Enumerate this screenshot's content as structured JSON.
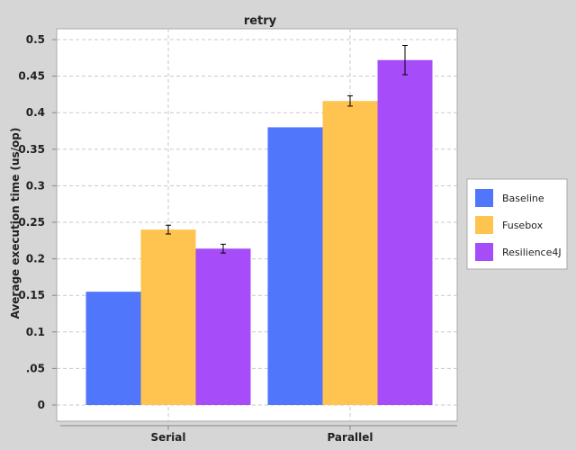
{
  "chart_data": {
    "type": "bar",
    "title": "retry",
    "xlabel": "",
    "ylabel": "Average execution time (us/op)",
    "ylim": [
      0,
      0.5
    ],
    "yticks": [
      0,
      0.05,
      0.1,
      0.15,
      0.2,
      0.25,
      0.3,
      0.35,
      0.4,
      0.45,
      0.5
    ],
    "ytick_labels": [
      "0",
      ".05",
      "0.1",
      "0.15",
      "0.2",
      "0.25",
      "0.3",
      "0.35",
      "0.4",
      "0.45",
      "0.5"
    ],
    "categories": [
      "Serial",
      "Parallel"
    ],
    "grid": true,
    "legend_position": "right",
    "series": [
      {
        "name": "Baseline",
        "color": "#4f76fb",
        "values": [
          0.155,
          0.38
        ],
        "error": [
          null,
          null
        ]
      },
      {
        "name": "Fusebox",
        "color": "#ffc34f",
        "values": [
          0.24,
          0.416
        ],
        "error": [
          0.006,
          0.007
        ]
      },
      {
        "name": "Resilience4J",
        "color": "#a64cf8",
        "values": [
          0.214,
          0.472
        ],
        "error": [
          0.006,
          0.02
        ]
      }
    ]
  }
}
